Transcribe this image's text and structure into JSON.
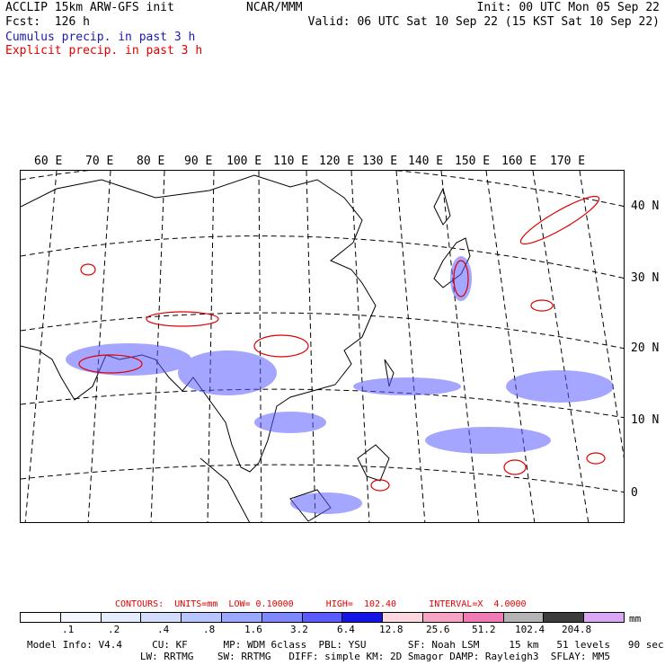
{
  "header": {
    "line1_left": "ACCLIP 15km ARW-GFS init",
    "line1_center": "NCAR/MMM",
    "line1_right": "Init: 00 UTC Mon 05 Sep 22",
    "line2_left": "Fcst:  126 h",
    "line2_right": "Valid: 06 UTC Sat 10 Sep 22 (15 KST Sat 10 Sep 22)",
    "cumulus_label": "Cumulus precip. in past 3 h",
    "explicit_label": "Explicit precip. in past 3 h"
  },
  "map": {
    "longitude_labels": [
      "60 E",
      "70 E",
      "80 E",
      "90 E",
      "100 E",
      "110 E",
      "120 E",
      "130 E",
      "140 E",
      "150 E",
      "160 E",
      "170 E"
    ],
    "latitude_labels": [
      "40 N",
      "30 N",
      "20 N",
      "10 N",
      "0"
    ]
  },
  "contours": {
    "text": "CONTOURS:  UNITS=mm  LOW= 0.10000      HIGH=  102.40      INTERVAL=X  4.0000"
  },
  "colorbar": {
    "colors": [
      "#ffffff",
      "#f4f7ff",
      "#e6ecff",
      "#d2ddff",
      "#b7c6ff",
      "#9aa8ff",
      "#7e88ff",
      "#5a5cff",
      "#1414e6",
      "#ffd7de",
      "#f7a3c3",
      "#f07bb4",
      "#b4b4b4",
      "#3c3c3c",
      "#d8a8f5"
    ],
    "tick_labels": [
      ".1",
      ".2",
      ".4",
      ".8",
      "1.6",
      "3.2",
      "6.4",
      "12.8",
      "25.6",
      "51.2",
      "102.4",
      "204.8"
    ],
    "units": "mm"
  },
  "model_info": {
    "line1": "Model Info: V4.4     CU: KF      MP: WDM 6class  PBL: YSU       SF: Noah LSM     15 km   51 levels   90 sec",
    "line2": "                   LW: RRTMG    SW: RRTMG   DIFF: simple KM: 2D Smagor DAMP: Rayleigh3  SFLAY: MM5"
  }
}
